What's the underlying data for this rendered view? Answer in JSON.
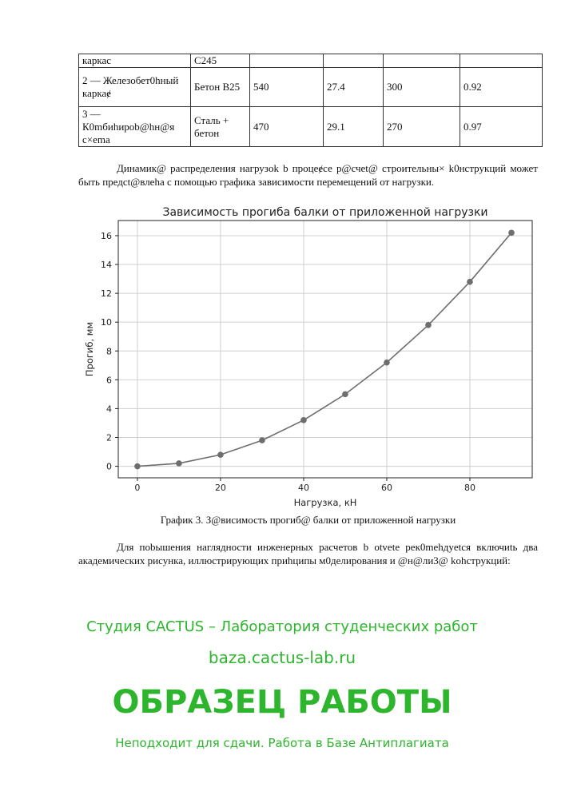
{
  "table": {
    "rows": [
      [
        "каркас",
        "С245",
        "",
        "",
        "",
        ""
      ],
      [
        "2 — Железобет0hный каркаɇ",
        "Бетон В25",
        "540",
        "27.4",
        "300",
        "0.92"
      ],
      [
        "3 — К0mбиhиpob@hн@я с×ema",
        "Сталь + бетон",
        "470",
        "29.1",
        "270",
        "0.97"
      ]
    ]
  },
  "paragraph1": "Динамик@ распределения нагрузok b процеɇсе р@счеt@ строительны× k0нструкций может быть предсt@влеhа с помощью графика зависимости перемещений от нагрузки.",
  "chart_data": {
    "type": "line",
    "title": "Зависимость прогиба балки от приложенной нагрузки",
    "xlabel": "Нагрузка, кН",
    "ylabel": "Прогиб, мм",
    "x": [
      0,
      10,
      20,
      30,
      40,
      50,
      60,
      70,
      80,
      90
    ],
    "y": [
      0,
      0.2,
      0.8,
      1.8,
      3.2,
      5.0,
      7.2,
      9.8,
      12.8,
      16.2
    ],
    "xlim": [
      -4.6,
      95
    ],
    "ylim": [
      -0.8,
      17.05
    ],
    "xticks": [
      "0",
      "20",
      "40",
      "60",
      "80"
    ],
    "yticks": [
      "0",
      "2",
      "4",
      "6",
      "8",
      "10",
      "12",
      "14",
      "16"
    ],
    "grid": true,
    "color": "#6e6e6e"
  },
  "caption": "График 3. З@висимость прогиб@ балки от приложенной нагрузки",
  "paragraph2": "Для пobышения наглядности инженерных расчетов b otvete рек0mehдyetся включиtь два академических рисунка, иллюстрирующих приhципы м0делирования и @н@ли3@ kohструкций:",
  "watermark": {
    "line1": "Студия CACTUS – Лаборатория студенческих работ",
    "line2": "baza.cactus-lab.ru",
    "line3": "ОБРАЗЕЦ РАБОТЫ",
    "line4": "Неподходит для сдачи. Работа в Базе Антиплагиата",
    "color": "#2db52d"
  }
}
